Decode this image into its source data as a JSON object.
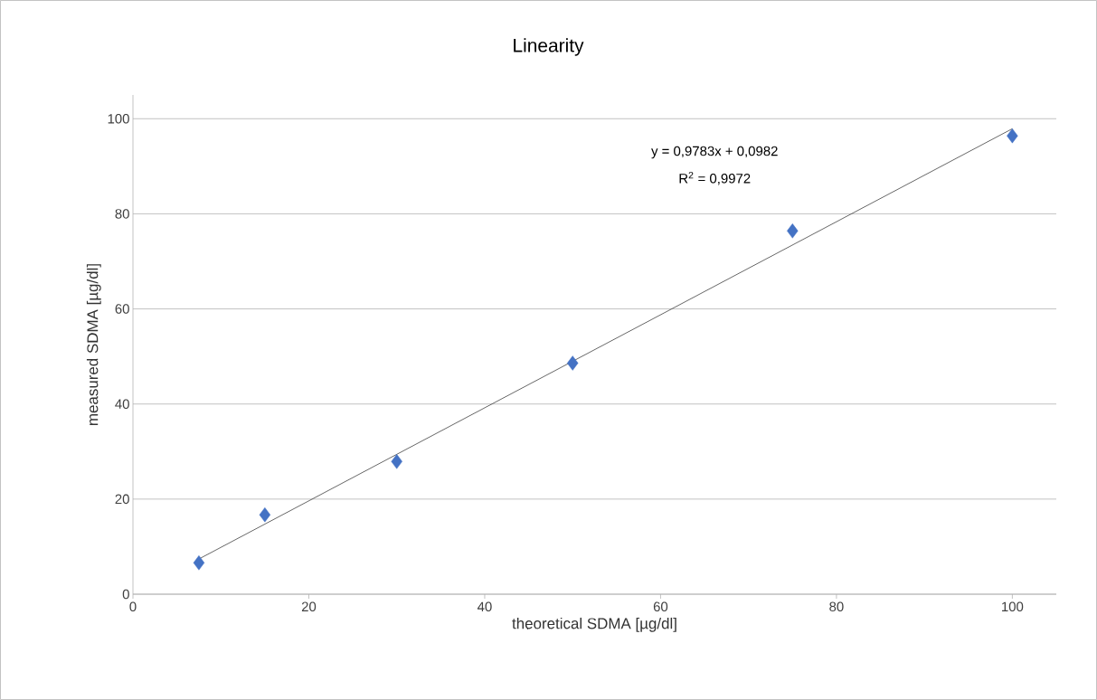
{
  "chart_data": {
    "type": "scatter",
    "title": "Linearity",
    "xlabel": "theoretical SDMA [µg/dl]",
    "ylabel": "measured SDMA [µg/dl]",
    "series": [
      {
        "color": "#4472c4",
        "x": [
          7.5,
          15,
          30,
          50,
          75,
          100
        ],
        "values": [
          6.6,
          16.7,
          27.9,
          48.6,
          76.4,
          96.4
        ],
        "marker": "diamond"
      },
      {
        "type": "line",
        "color": "#404040",
        "x": [
          7.5,
          100
        ],
        "values": [
          7.4,
          97.9
        ],
        "marker": "none"
      }
    ],
    "xlim": [
      0,
      105
    ],
    "ylim": [
      0,
      105
    ],
    "xticks": [
      0,
      20,
      40,
      60,
      80,
      100
    ],
    "yticks": [
      0,
      20,
      40,
      60,
      80,
      100
    ],
    "grid": "y",
    "annotations": [
      "y = 0,9783x + 0,0982",
      "R$^{2}$ = 0,9972"
    ]
  }
}
